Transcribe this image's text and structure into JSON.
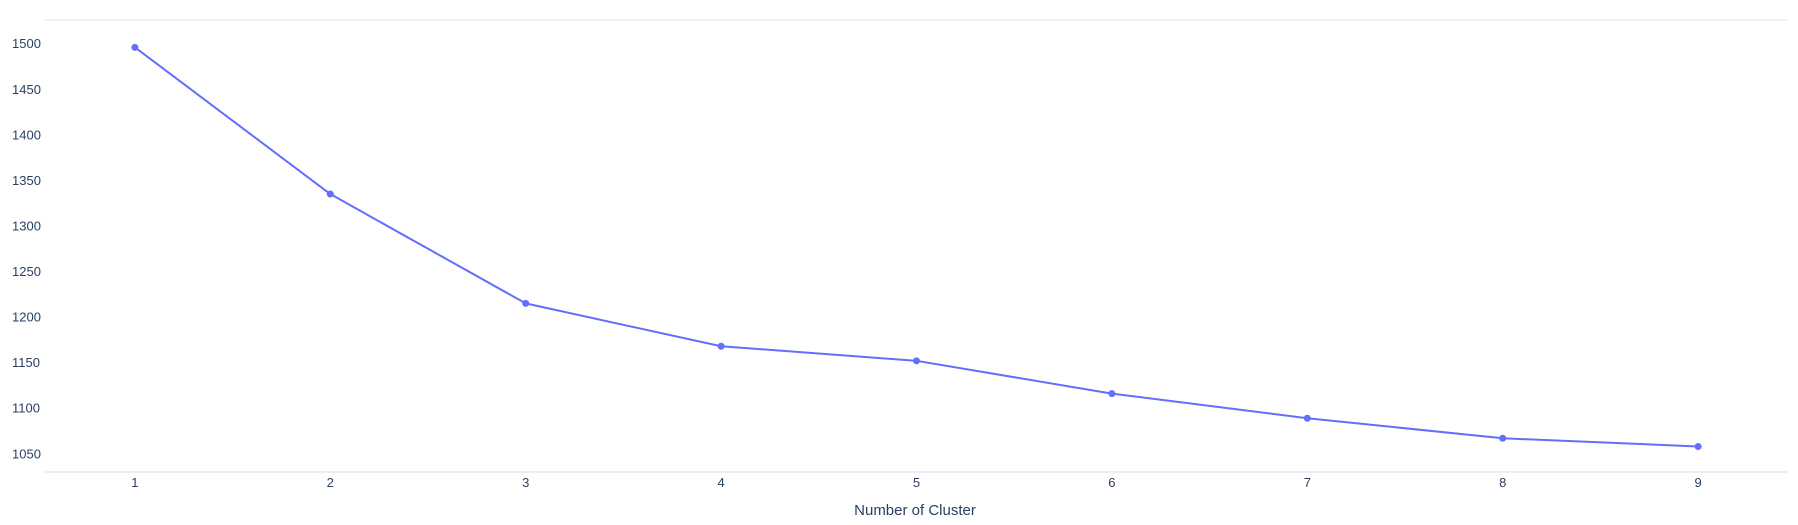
{
  "chart_data": {
    "type": "line",
    "title": "",
    "xlabel": "Number of Cluster",
    "ylabel": "",
    "x": [
      1,
      2,
      3,
      4,
      5,
      6,
      7,
      8,
      9
    ],
    "xticks": [
      "1",
      "2",
      "3",
      "4",
      "5",
      "6",
      "7",
      "8",
      "9"
    ],
    "yticks": [
      "1050",
      "1100",
      "1150",
      "1200",
      "1250",
      "1300",
      "1350",
      "1400",
      "1450",
      "1500"
    ],
    "xlim": [
      0.54,
      9.46
    ],
    "ylim": [
      1030,
      1526
    ],
    "grid": true,
    "legend": "none",
    "series": [
      {
        "values": [
          1496,
          1335,
          1215,
          1168,
          1152,
          1116,
          1089,
          1067,
          1058
        ],
        "color": "#636efa",
        "mode": "lines+markers"
      }
    ]
  }
}
